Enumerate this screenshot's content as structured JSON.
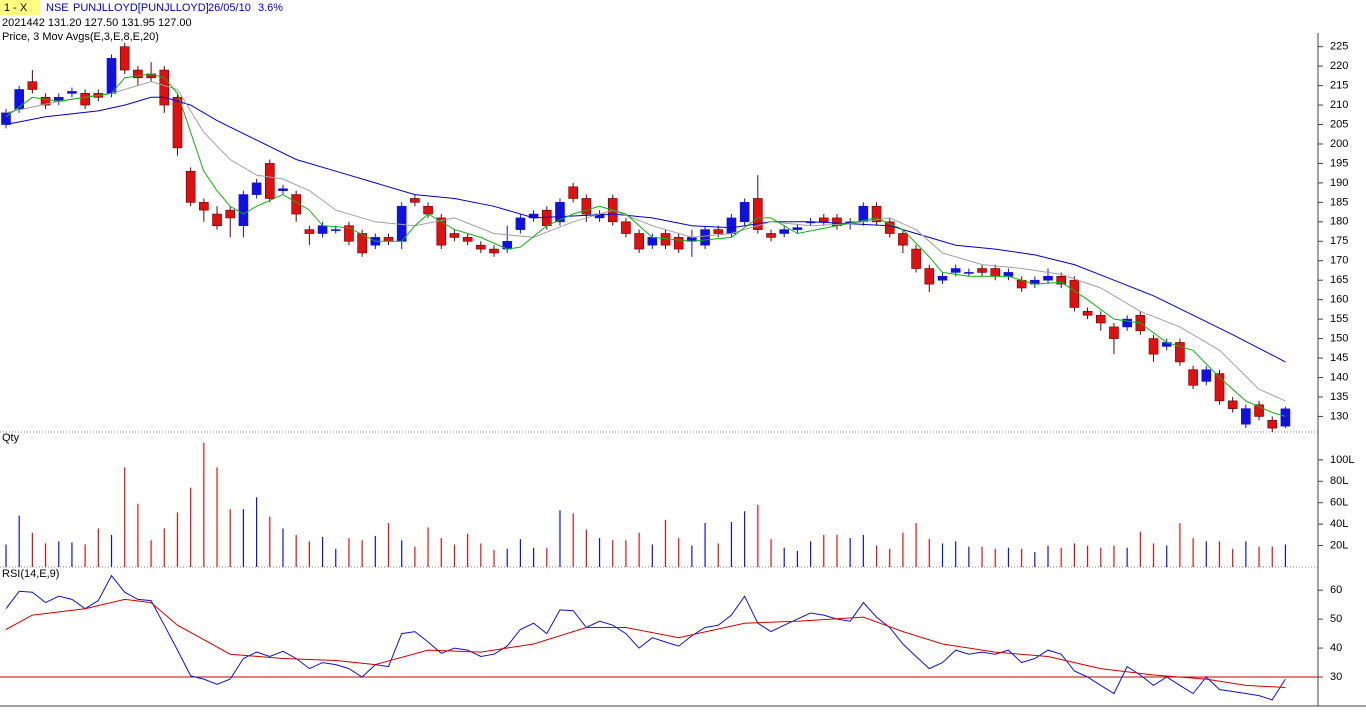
{
  "header": {
    "window": "1 - X",
    "exchange": "NSE",
    "symbol": "PUNJLLOYD[PUNJLLOYD]",
    "date": "26/05/10",
    "change": "3.6%",
    "quote": "2021442 131.20 127.50 131.95 127.00"
  },
  "chart_data": [
    {
      "type": "candlestick",
      "title": "Price, 3 Mov Avgs(E,3,E,8,E,20)",
      "up_color": "#1010e0",
      "down_color": "#e01010",
      "open": [
        205,
        209,
        216,
        212,
        211,
        213,
        213,
        213,
        213,
        225,
        219,
        218,
        219,
        212,
        193,
        185,
        182,
        183,
        179,
        187,
        195,
        188,
        187,
        178,
        177,
        178,
        179,
        177,
        174,
        176,
        175,
        186,
        184,
        181,
        177,
        176,
        174,
        173,
        173,
        178,
        181,
        183,
        180,
        189,
        186,
        181,
        186,
        180,
        177,
        174,
        177,
        176,
        175,
        174,
        178,
        177,
        180,
        186,
        177,
        177,
        178,
        180,
        181,
        181,
        180,
        180,
        184,
        180,
        177,
        173,
        168,
        165,
        167,
        167,
        168,
        168,
        166,
        165,
        164,
        165,
        166,
        165,
        157,
        156,
        153,
        153,
        156,
        150,
        148,
        149,
        142,
        139,
        141,
        134,
        128,
        133,
        129,
        127.5
      ],
      "high": [
        209,
        215,
        219,
        213,
        213,
        214.5,
        214,
        214,
        223,
        226,
        220,
        221,
        220,
        213,
        194,
        186,
        184,
        184,
        188,
        191,
        196,
        189.5,
        188,
        179,
        180,
        179,
        180,
        178,
        177,
        177,
        185,
        187,
        185,
        182,
        178,
        177,
        175,
        174,
        179,
        182,
        183,
        184,
        186,
        190,
        187,
        183,
        187,
        181,
        178,
        177,
        178,
        177,
        178,
        179,
        179,
        182,
        186,
        192,
        178,
        179,
        179.5,
        181,
        182,
        182,
        181,
        185,
        185,
        181,
        178,
        174,
        169,
        167,
        169,
        168,
        169,
        169,
        168,
        166,
        166,
        168,
        167,
        166,
        158,
        157,
        154,
        156,
        157,
        151,
        150,
        150,
        143,
        143,
        142,
        135,
        133,
        134,
        130,
        132.5
      ],
      "low": [
        204,
        208,
        213,
        209,
        210,
        212,
        209,
        211,
        212,
        218,
        215,
        216,
        208,
        197,
        184,
        180,
        178,
        176,
        176,
        186,
        185,
        187,
        180,
        174,
        176,
        177,
        174,
        171,
        173,
        174,
        173,
        184,
        181,
        173,
        175,
        174,
        172,
        171,
        172,
        177,
        180,
        178,
        179,
        185,
        180,
        180,
        179,
        176,
        172,
        173,
        173,
        172,
        171,
        173,
        176,
        176,
        179,
        177,
        175,
        176,
        177,
        179,
        179,
        178,
        178,
        179,
        179,
        176,
        172,
        167,
        162,
        164,
        166,
        166,
        166,
        165,
        165,
        162,
        163,
        164,
        163,
        157,
        155,
        152,
        146,
        152,
        151,
        144,
        147,
        143,
        137,
        138,
        133,
        131,
        127,
        129,
        126,
        127
      ],
      "close": [
        208,
        214,
        214,
        210,
        212,
        213.5,
        210,
        212,
        222,
        219,
        217,
        217,
        210,
        199,
        185,
        183,
        179,
        181,
        187,
        190,
        186,
        188.5,
        182,
        177,
        179,
        178,
        175,
        172,
        176,
        175,
        184,
        185,
        182,
        174,
        176,
        175,
        173,
        172,
        175,
        181,
        182,
        179,
        185,
        186,
        182,
        182,
        180,
        177,
        173,
        176,
        174,
        173,
        176,
        178,
        177,
        181,
        185,
        178,
        176,
        178,
        178.5,
        180,
        180,
        179,
        180,
        184,
        180,
        177,
        174,
        168,
        164,
        166,
        168,
        167,
        167,
        166,
        167,
        163,
        165,
        166,
        164,
        158,
        156,
        154,
        150,
        155,
        152,
        146,
        149,
        144,
        138,
        142,
        134,
        132,
        132,
        130,
        127,
        131.95
      ],
      "lines": [
        {
          "color": "#0000c8",
          "x": [
            0,
            3,
            7,
            9,
            11,
            12,
            14,
            16,
            19,
            22,
            25,
            28,
            31,
            34,
            37,
            40,
            43,
            46,
            49,
            52,
            55,
            58,
            61,
            64,
            67,
            69,
            72,
            75,
            78,
            81,
            84,
            87,
            90,
            93,
            95,
            97
          ],
          "values": [
            205,
            207,
            208.5,
            210,
            212,
            212,
            210,
            206,
            201,
            196,
            193,
            190,
            187,
            186,
            184,
            181,
            181.5,
            182,
            181,
            179,
            178.5,
            180,
            180,
            179.5,
            179,
            177,
            174,
            173,
            171.5,
            169,
            165,
            161,
            156,
            151,
            147.5,
            144
          ]
        },
        {
          "color": "#a0a0a0",
          "x": [
            0,
            4,
            8,
            11,
            13,
            15,
            17,
            19,
            21,
            23,
            25,
            28,
            31,
            34,
            37,
            40,
            43,
            46,
            49,
            52,
            55,
            58,
            61,
            64,
            67,
            69,
            71,
            74,
            77,
            80,
            83,
            86,
            89,
            92,
            95,
            97
          ],
          "values": [
            208,
            211,
            213,
            216,
            214,
            203,
            196,
            192,
            191,
            188,
            183,
            180,
            179,
            181,
            177,
            176,
            180,
            183,
            179,
            176,
            177,
            180,
            179,
            179.5,
            181,
            178,
            172,
            169,
            168,
            166.5,
            163,
            157,
            153,
            147,
            137,
            134
          ]
        },
        {
          "color": "#10b010",
          "x": [
            0,
            2,
            4,
            6,
            8,
            9,
            11,
            12,
            13,
            14,
            15,
            16,
            17,
            18,
            19,
            21,
            23,
            24,
            26,
            28,
            30,
            31,
            32,
            34,
            36,
            38,
            39,
            41,
            43,
            45,
            47,
            49,
            52,
            55,
            57,
            58,
            60,
            63,
            66,
            68,
            70,
            71,
            73,
            76,
            78,
            80,
            82,
            84,
            86,
            88,
            90,
            92,
            94,
            96,
            97
          ],
          "values": [
            207,
            212,
            211,
            212,
            213,
            217,
            218,
            217,
            213,
            203,
            193,
            188,
            184,
            182,
            184,
            187,
            183,
            179,
            178.5,
            175,
            175,
            179,
            182,
            178,
            176,
            173,
            173.5,
            179,
            182,
            184,
            182,
            176,
            175,
            176,
            181,
            181,
            177,
            179,
            181,
            178,
            171,
            167,
            166,
            166,
            164,
            164.5,
            160,
            155,
            154,
            149,
            147,
            140,
            134,
            131,
            130
          ]
        }
      ],
      "ylim": [
        126,
        228
      ],
      "yticks": [
        130,
        135,
        140,
        145,
        150,
        155,
        160,
        165,
        170,
        175,
        180,
        185,
        190,
        195,
        200,
        205,
        210,
        215,
        220,
        225
      ]
    },
    {
      "type": "bar",
      "title": "Qty",
      "values": [
        21,
        48,
        32,
        22,
        24,
        23,
        21,
        36,
        30,
        93,
        59,
        25,
        36,
        51,
        74,
        116,
        93,
        54,
        54,
        65,
        47,
        36,
        30,
        24,
        28,
        17,
        27,
        25,
        29,
        41,
        25,
        19,
        37,
        27,
        21,
        31,
        22,
        16,
        17,
        26,
        18,
        18,
        53,
        50,
        35,
        27,
        25,
        25,
        32,
        21,
        44,
        27,
        20,
        41,
        22,
        42,
        52,
        58,
        26,
        18,
        15,
        24,
        30,
        30,
        27,
        30,
        20,
        17,
        32,
        41,
        26,
        22,
        24,
        19,
        19,
        17,
        18,
        17,
        14,
        20,
        18,
        22,
        20,
        18,
        20,
        18,
        33,
        22,
        20,
        41,
        27,
        24,
        24,
        17,
        24,
        19,
        19,
        21
      ],
      "ylim": [
        0,
        126
      ],
      "yticks": [
        {
          "value": 20,
          "label": "20L"
        },
        {
          "value": 40,
          "label": "40L"
        },
        {
          "value": 60,
          "label": "60L"
        },
        {
          "value": 80,
          "label": "80L"
        },
        {
          "value": 100,
          "label": "100L"
        }
      ]
    },
    {
      "type": "line",
      "title": "RSI(14,E,9)",
      "reference_line": 30,
      "reference_color": "#c00000",
      "series": [
        {
          "color": "#1010d0",
          "values": [
            53.6,
            59.6,
            59.3,
            55.7,
            57.9,
            56.8,
            53.6,
            56.4,
            65,
            59.3,
            56.8,
            56.4,
            47.9,
            39.3,
            30.4,
            29.3,
            27.5,
            29.3,
            36.4,
            38.6,
            37.1,
            38.9,
            36.4,
            32.9,
            35,
            34.3,
            32.9,
            30,
            34.3,
            33.6,
            45,
            45.7,
            42.1,
            38.2,
            40,
            39.3,
            37.1,
            37.9,
            40.7,
            46.4,
            48.6,
            45,
            53.2,
            52.9,
            47.1,
            49.3,
            47.9,
            45,
            40,
            43.6,
            42.1,
            40.7,
            44.3,
            47.1,
            47.9,
            51.4,
            57.9,
            48.6,
            45.7,
            47.9,
            50,
            52.1,
            51.4,
            50,
            49.3,
            55.7,
            50.7,
            47.1,
            41.4,
            37.1,
            32.9,
            35,
            39.3,
            37.9,
            38.6,
            37.9,
            39.3,
            35,
            36.4,
            39.3,
            37.9,
            32.1,
            30,
            27.1,
            24.3,
            33.6,
            30.7,
            27.1,
            30,
            27.1,
            24.3,
            30,
            25.7,
            25,
            24.3,
            23.6,
            22.1,
            29.3
          ]
        },
        {
          "color": "#d00000",
          "x": [
            0,
            2,
            6,
            9,
            11,
            13,
            17,
            21,
            25,
            28,
            32,
            36,
            40,
            44,
            47,
            51,
            56,
            60,
            65,
            68,
            71,
            75,
            79,
            83,
            87,
            91,
            94,
            97
          ],
          "values": [
            46.4,
            51.4,
            53.6,
            56.8,
            55.7,
            47.9,
            37.9,
            36.4,
            35.7,
            34.3,
            39.3,
            38.6,
            41.4,
            47.1,
            47.1,
            43.6,
            48.6,
            49.3,
            50.7,
            45.7,
            41.4,
            38.6,
            37.1,
            32.9,
            30.7,
            29.3,
            27.1,
            26.4
          ]
        }
      ],
      "ylim": [
        20,
        68
      ],
      "yticks": [
        30,
        40,
        50,
        60
      ]
    }
  ]
}
